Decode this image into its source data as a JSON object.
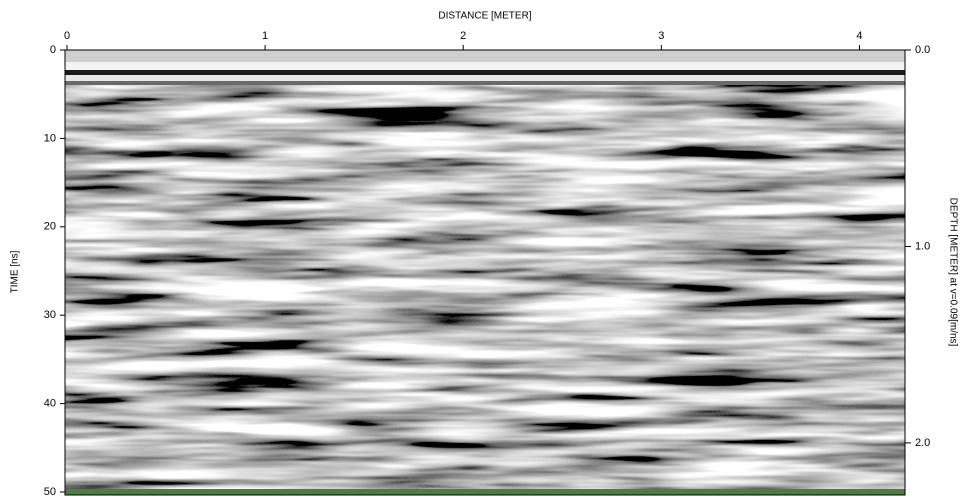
{
  "chart_data": {
    "type": "radargram",
    "x_label": "DISTANCE [METER]",
    "y_label": "TIME [ns]",
    "y2_label": "DEPTH [METER] at v=0.09[m/ns]",
    "xlim": [
      0,
      4.24
    ],
    "xticks": [
      0,
      1,
      2,
      3,
      4
    ],
    "ylim": [
      0,
      50
    ],
    "yticks": [
      0,
      10,
      20,
      30,
      40,
      50
    ],
    "y2lim": [
      0,
      2.25
    ],
    "y2ticks": [
      {
        "value": 0,
        "label": "0.0"
      },
      {
        "value": 1,
        "label": "1.0"
      },
      {
        "value": 2,
        "label": "2.0"
      }
    ]
  }
}
